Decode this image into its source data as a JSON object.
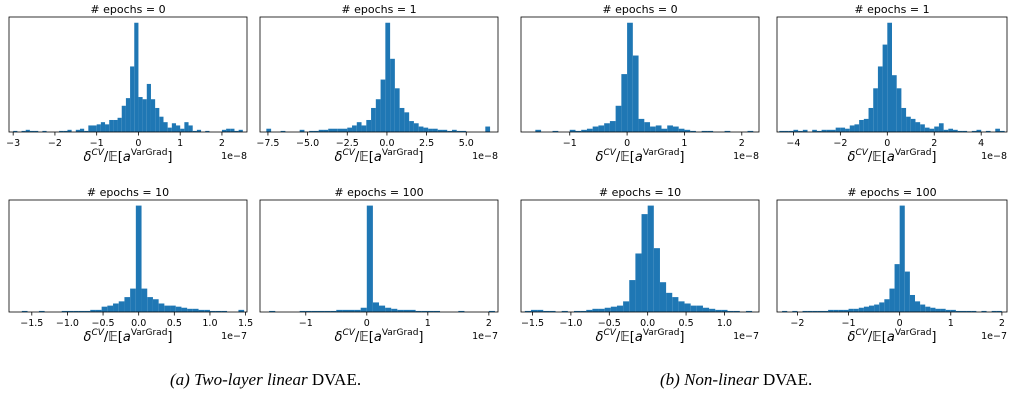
{
  "figure": {
    "colors": {
      "bar": "#1f77b4",
      "axis": "#000000"
    },
    "xlabel_main": "δ^{CV}/𝔼[a^{VarGrad}]",
    "captions": [
      {
        "label": "(a)",
        "text": "Two-layer linear",
        "suffix": "DVAE."
      },
      {
        "label": "(b)",
        "text": "Non-linear",
        "suffix": "DVAE."
      }
    ]
  },
  "chart_data": [
    {
      "type": "bar",
      "panel": "a",
      "title": "# epochs = 0",
      "xlim": [
        -3.1,
        2.6
      ],
      "x_ticks": [
        -3,
        -2,
        -1,
        0,
        1,
        2
      ],
      "x_ticklabels": [
        "−3",
        "−2",
        "−1",
        "0",
        "1",
        "2"
      ],
      "offset_text": "1e−8",
      "bins": [
        -3.0,
        -2.9,
        -2.8,
        -2.7,
        -2.6,
        -2.5,
        -2.4,
        -2.3,
        -2.2,
        -2.1,
        -2.0,
        -1.9,
        -1.8,
        -1.7,
        -1.6,
        -1.5,
        -1.4,
        -1.3,
        -1.2,
        -1.1,
        -1.0,
        -0.9,
        -0.8,
        -0.7,
        -0.6,
        -0.5,
        -0.4,
        -0.3,
        -0.2,
        -0.1,
        0.0,
        0.1,
        0.2,
        0.3,
        0.4,
        0.5,
        0.6,
        0.7,
        0.8,
        0.9,
        1.0,
        1.1,
        1.2,
        1.3,
        1.4,
        1.5,
        1.6,
        1.7,
        1.8,
        1.9,
        2.0,
        2.1,
        2.2,
        2.3,
        2.4
      ],
      "values": [
        1,
        0,
        1,
        2,
        1,
        1,
        0,
        1,
        0,
        0,
        0,
        1,
        1,
        2,
        0,
        2,
        3,
        1,
        6,
        6,
        7,
        9,
        7,
        11,
        11,
        13,
        24,
        31,
        60,
        100,
        32,
        30,
        44,
        30,
        22,
        14,
        9,
        4,
        8,
        6,
        3,
        9,
        6,
        1,
        2,
        0,
        1,
        0,
        0,
        0,
        2,
        3,
        3,
        1,
        2
      ]
    },
    {
      "type": "bar",
      "panel": "a",
      "title": "# epochs = 1",
      "xlim": [
        -8.0,
        7.0
      ],
      "x_ticks": [
        -7.5,
        -5.0,
        -2.5,
        0.0,
        2.5,
        5.0
      ],
      "x_ticklabels": [
        "−7.5",
        "−5.0",
        "−2.5",
        "0.0",
        "2.5",
        "5.0"
      ],
      "offset_text": "1e−8",
      "bins": [
        -7.6,
        -7.3,
        -7.0,
        -6.7,
        -6.4,
        -6.1,
        -5.8,
        -5.5,
        -5.2,
        -4.9,
        -4.6,
        -4.3,
        -4.0,
        -3.7,
        -3.4,
        -3.1,
        -2.8,
        -2.5,
        -2.2,
        -1.9,
        -1.6,
        -1.3,
        -1.0,
        -0.7,
        -0.4,
        -0.1,
        0.2,
        0.5,
        0.8,
        1.1,
        1.4,
        1.7,
        2.0,
        2.3,
        2.6,
        2.9,
        3.2,
        3.5,
        3.8,
        4.1,
        4.4,
        4.7,
        5.0,
        5.3,
        5.6,
        5.9,
        6.2
      ],
      "values": [
        3,
        0,
        0,
        1,
        0,
        0,
        0,
        2,
        0,
        1,
        1,
        2,
        2,
        3,
        3,
        3,
        3,
        4,
        6,
        9,
        6,
        11,
        22,
        30,
        48,
        100,
        67,
        40,
        22,
        18,
        10,
        8,
        5,
        4,
        3,
        3,
        2,
        2,
        1,
        2,
        1,
        1,
        0,
        0,
        0,
        0,
        5
      ]
    },
    {
      "type": "bar",
      "panel": "b",
      "title": "# epochs = 0",
      "xlim": [
        -1.85,
        2.3
      ],
      "x_ticks": [
        -1,
        0,
        1,
        2
      ],
      "x_ticklabels": [
        "−1",
        "0",
        "1",
        "2"
      ],
      "offset_text": "1e−8",
      "bins": [
        -1.8,
        -1.7,
        -1.6,
        -1.5,
        -1.4,
        -1.3,
        -1.2,
        -1.1,
        -1.0,
        -0.9,
        -0.8,
        -0.7,
        -0.6,
        -0.5,
        -0.4,
        -0.3,
        -0.2,
        -0.1,
        0.0,
        0.1,
        0.2,
        0.3,
        0.4,
        0.5,
        0.6,
        0.7,
        0.8,
        0.9,
        1.0,
        1.1,
        1.2,
        1.3,
        1.4,
        1.5,
        1.6,
        1.7,
        1.8,
        1.9,
        2.0,
        2.1
      ],
      "values": [
        0,
        0,
        2,
        0,
        0,
        1,
        0,
        0,
        2,
        1,
        2,
        3,
        5,
        6,
        8,
        10,
        24,
        53,
        100,
        70,
        12,
        9,
        5,
        6,
        3,
        6,
        5,
        3,
        2,
        1,
        0,
        1,
        1,
        0,
        0,
        1,
        0,
        0,
        0,
        1
      ]
    },
    {
      "type": "bar",
      "panel": "b",
      "title": "# epochs = 1",
      "xlim": [
        -4.7,
        5.1
      ],
      "x_ticks": [
        -4,
        -2,
        0,
        2,
        4
      ],
      "x_ticklabels": [
        "−4",
        "−2",
        "0",
        "2",
        "4"
      ],
      "offset_text": "1e−8",
      "bins": [
        -4.6,
        -4.4,
        -4.2,
        -4.0,
        -3.8,
        -3.6,
        -3.4,
        -3.2,
        -3.0,
        -2.8,
        -2.6,
        -2.4,
        -2.2,
        -2.0,
        -1.8,
        -1.6,
        -1.4,
        -1.2,
        -1.0,
        -0.8,
        -0.6,
        -0.4,
        -0.2,
        0.0,
        0.2,
        0.4,
        0.6,
        0.8,
        1.0,
        1.2,
        1.4,
        1.6,
        1.8,
        2.0,
        2.2,
        2.4,
        2.6,
        2.8,
        3.0,
        3.2,
        3.4,
        3.6,
        3.8,
        4.0,
        4.2,
        4.4,
        4.6,
        4.8
      ],
      "values": [
        1,
        1,
        1,
        2,
        1,
        2,
        0,
        2,
        1,
        2,
        2,
        2,
        4,
        4,
        3,
        6,
        7,
        11,
        12,
        22,
        40,
        60,
        80,
        100,
        52,
        40,
        22,
        14,
        12,
        9,
        7,
        4,
        3,
        5,
        8,
        2,
        3,
        2,
        1,
        1,
        0,
        1,
        2,
        0,
        1,
        0,
        3,
        1
      ]
    },
    {
      "type": "bar",
      "panel": "a",
      "title": "# epochs = 10",
      "xlim": [
        -1.82,
        1.52
      ],
      "x_ticks": [
        -1.5,
        -1.0,
        -0.5,
        0.0,
        0.5,
        1.0,
        1.5
      ],
      "x_ticklabels": [
        "−1.5",
        "−1.0",
        "−0.5",
        "0.0",
        "0.5",
        "1.0",
        "1.5"
      ],
      "offset_text": "1e−7",
      "bins": [
        -1.8,
        -1.72,
        -1.64,
        -1.56,
        -1.48,
        -1.4,
        -1.32,
        -1.24,
        -1.16,
        -1.08,
        -1.0,
        -0.92,
        -0.84,
        -0.76,
        -0.68,
        -0.6,
        -0.52,
        -0.44,
        -0.36,
        -0.28,
        -0.2,
        -0.12,
        -0.04,
        0.04,
        0.12,
        0.2,
        0.28,
        0.36,
        0.44,
        0.52,
        0.6,
        0.68,
        0.76,
        0.84,
        0.92,
        1.0,
        1.08,
        1.16,
        1.24,
        1.32,
        1.4
      ],
      "values": [
        0,
        0,
        1,
        0,
        0,
        1,
        0,
        0,
        0,
        1,
        1,
        1,
        1,
        1,
        2,
        2,
        5,
        6,
        8,
        10,
        14,
        22,
        100,
        22,
        14,
        12,
        8,
        6,
        6,
        5,
        4,
        3,
        3,
        2,
        2,
        1,
        1,
        1,
        0,
        0,
        2
      ]
    },
    {
      "type": "bar",
      "panel": "a",
      "title": "# epochs = 100",
      "xlim": [
        -1.75,
        2.15
      ],
      "x_ticks": [
        -1,
        0,
        1,
        2
      ],
      "x_ticklabels": [
        "−1",
        "0",
        "1",
        "2"
      ],
      "offset_text": "1e−7",
      "bins": [
        -1.7,
        -1.6,
        -1.5,
        -1.4,
        -1.3,
        -1.2,
        -1.1,
        -1.0,
        -0.9,
        -0.8,
        -0.7,
        -0.6,
        -0.5,
        -0.4,
        -0.3,
        -0.2,
        -0.1,
        0.0,
        0.1,
        0.2,
        0.3,
        0.4,
        0.5,
        0.6,
        0.7,
        0.8,
        0.9,
        1.0,
        1.1,
        1.2,
        1.3,
        1.4,
        1.5,
        1.6,
        1.7,
        1.8,
        1.9,
        2.0
      ],
      "values": [
        0,
        1,
        0,
        0,
        0,
        0,
        1,
        1,
        1,
        1,
        1,
        1,
        2,
        2,
        2,
        2,
        4,
        100,
        9,
        6,
        4,
        3,
        2,
        2,
        2,
        1,
        1,
        1,
        1,
        0,
        0,
        0,
        1,
        0,
        0,
        0,
        0,
        1
      ]
    },
    {
      "type": "bar",
      "panel": "b",
      "title": "# epochs = 10",
      "xlim": [
        -1.65,
        1.45
      ],
      "x_ticks": [
        -1.5,
        -1.0,
        -0.5,
        0.0,
        0.5,
        1.0
      ],
      "x_ticklabels": [
        "−1.5",
        "−1.0",
        "−0.5",
        "0.0",
        "0.5",
        "1.0"
      ],
      "offset_text": "1e−7",
      "bins": [
        -1.6,
        -1.52,
        -1.44,
        -1.36,
        -1.28,
        -1.2,
        -1.12,
        -1.04,
        -0.96,
        -0.88,
        -0.8,
        -0.72,
        -0.64,
        -0.56,
        -0.48,
        -0.4,
        -0.32,
        -0.24,
        -0.16,
        -0.08,
        0.0,
        0.08,
        0.16,
        0.24,
        0.32,
        0.4,
        0.48,
        0.56,
        0.64,
        0.72,
        0.8,
        0.88,
        0.96,
        1.04,
        1.12,
        1.2,
        1.28
      ],
      "values": [
        1,
        2,
        2,
        1,
        1,
        0,
        1,
        0,
        1,
        1,
        2,
        3,
        3,
        4,
        5,
        6,
        10,
        30,
        55,
        92,
        100,
        60,
        28,
        18,
        14,
        10,
        8,
        6,
        6,
        4,
        3,
        2,
        2,
        1,
        1,
        0,
        1
      ]
    },
    {
      "type": "bar",
      "panel": "b",
      "title": "# epochs = 100",
      "xlim": [
        -2.4,
        2.1
      ],
      "x_ticks": [
        -2,
        -1,
        0,
        1,
        2
      ],
      "x_ticklabels": [
        "−2",
        "−1",
        "0",
        "1",
        "2"
      ],
      "offset_text": "1e−7",
      "bins": [
        -2.3,
        -2.2,
        -2.1,
        -2.0,
        -1.9,
        -1.8,
        -1.7,
        -1.6,
        -1.5,
        -1.4,
        -1.3,
        -1.2,
        -1.1,
        -1.0,
        -0.9,
        -0.8,
        -0.7,
        -0.6,
        -0.5,
        -0.4,
        -0.3,
        -0.2,
        -0.1,
        0.0,
        0.1,
        0.2,
        0.3,
        0.4,
        0.5,
        0.6,
        0.7,
        0.8,
        0.9,
        1.0,
        1.1,
        1.2,
        1.3,
        1.4,
        1.5,
        1.6,
        1.7,
        1.8,
        1.9
      ],
      "values": [
        1,
        0,
        1,
        0,
        1,
        1,
        1,
        1,
        1,
        2,
        2,
        2,
        2,
        3,
        3,
        4,
        5,
        6,
        7,
        9,
        12,
        22,
        45,
        100,
        38,
        16,
        10,
        7,
        5,
        4,
        3,
        3,
        2,
        2,
        1,
        1,
        1,
        1,
        0,
        1,
        0,
        1,
        1
      ]
    }
  ]
}
